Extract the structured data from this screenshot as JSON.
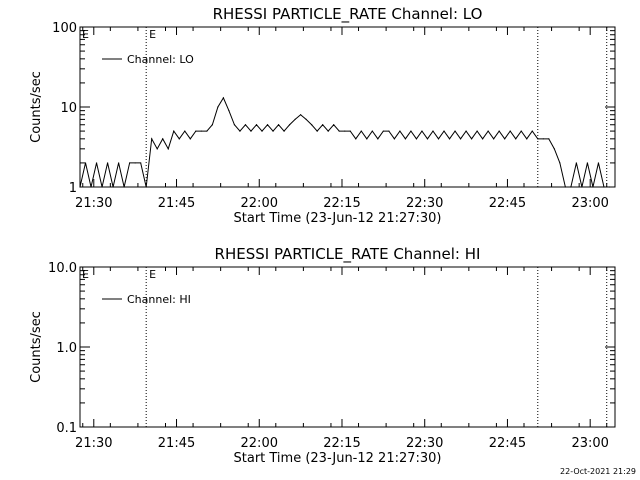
{
  "footer_timestamp": "22-Oct-2021 21:29",
  "chart_data": [
    {
      "type": "line",
      "title": "RHESSI PARTICLE_RATE Channel: LO",
      "xlabel": "Start Time (23-Jun-12 21:27:30)",
      "ylabel": "Counts/sec",
      "yscale": "log",
      "ylim": [
        1,
        100
      ],
      "y_ticks": [
        1,
        10,
        100
      ],
      "y_tick_labels": [
        "1",
        "10",
        "100"
      ],
      "x_unit": "minutes since 21:27:30",
      "xlim": [
        0,
        97
      ],
      "x_ticks": [
        2.5,
        17.5,
        32.5,
        47.5,
        62.5,
        77.5,
        92.5
      ],
      "x_tick_labels": [
        "21:30",
        "21:45",
        "22:00",
        "22:15",
        "22:30",
        "22:45",
        "23:00"
      ],
      "legend": {
        "label": "Channel: LO",
        "position": "top-left"
      },
      "markers": [
        {
          "x": 12.0,
          "label": "E"
        },
        {
          "x": 83.0,
          "label": ""
        },
        {
          "x": 95.5,
          "label": ""
        }
      ],
      "series": [
        {
          "name": "Channel: LO",
          "x": [
            0,
            1,
            2,
            3,
            4,
            5,
            6,
            7,
            8,
            9,
            10,
            11,
            12,
            13,
            14,
            15,
            16,
            17,
            18,
            19,
            20,
            21,
            22,
            23,
            24,
            25,
            26,
            27,
            28,
            29,
            30,
            31,
            32,
            33,
            34,
            35,
            36,
            37,
            38,
            39,
            40,
            41,
            42,
            43,
            44,
            45,
            46,
            47,
            48,
            49,
            50,
            51,
            52,
            53,
            54,
            55,
            56,
            57,
            58,
            59,
            60,
            61,
            62,
            63,
            64,
            65,
            66,
            67,
            68,
            69,
            70,
            71,
            72,
            73,
            74,
            75,
            76,
            77,
            78,
            79,
            80,
            81,
            82,
            83,
            84,
            85,
            86,
            87,
            88,
            89,
            90,
            91,
            92,
            93,
            94,
            95,
            96
          ],
          "y": [
            1,
            2,
            1,
            2,
            1,
            2,
            1,
            2,
            1,
            2,
            2,
            2,
            1,
            4,
            3,
            4,
            3,
            5,
            4,
            5,
            4,
            5,
            5,
            5,
            6,
            10,
            13,
            9,
            6,
            5,
            6,
            5,
            6,
            5,
            6,
            5,
            6,
            5,
            6,
            7,
            8,
            7,
            6,
            5,
            6,
            5,
            6,
            5,
            5,
            5,
            4,
            5,
            4,
            5,
            4,
            5,
            5,
            4,
            5,
            4,
            5,
            4,
            5,
            4,
            5,
            4,
            5,
            4,
            5,
            4,
            5,
            4,
            5,
            4,
            5,
            4,
            5,
            4,
            5,
            4,
            5,
            4,
            5,
            4,
            4,
            4,
            3,
            2,
            1,
            1,
            2,
            1,
            2,
            1,
            2,
            1,
            1
          ]
        }
      ]
    },
    {
      "type": "line",
      "title": "RHESSI PARTICLE_RATE Channel: HI",
      "xlabel": "Start Time (23-Jun-12 21:27:30)",
      "ylabel": "Counts/sec",
      "yscale": "log",
      "ylim": [
        0.1,
        10
      ],
      "y_ticks": [
        0.1,
        1,
        10
      ],
      "y_tick_labels": [
        "0.1",
        "1.0",
        "10.0"
      ],
      "x_unit": "minutes since 21:27:30",
      "xlim": [
        0,
        97
      ],
      "x_ticks": [
        2.5,
        17.5,
        32.5,
        47.5,
        62.5,
        77.5,
        92.5
      ],
      "x_tick_labels": [
        "21:30",
        "21:45",
        "22:00",
        "22:15",
        "22:30",
        "22:45",
        "23:00"
      ],
      "legend": {
        "label": "Channel: HI",
        "position": "top-left"
      },
      "markers": [
        {
          "x": 12.0,
          "label": "E"
        },
        {
          "x": 83.0,
          "label": ""
        },
        {
          "x": 95.5,
          "label": ""
        }
      ],
      "series": [
        {
          "name": "Channel: HI",
          "x": [],
          "y": []
        }
      ]
    }
  ]
}
